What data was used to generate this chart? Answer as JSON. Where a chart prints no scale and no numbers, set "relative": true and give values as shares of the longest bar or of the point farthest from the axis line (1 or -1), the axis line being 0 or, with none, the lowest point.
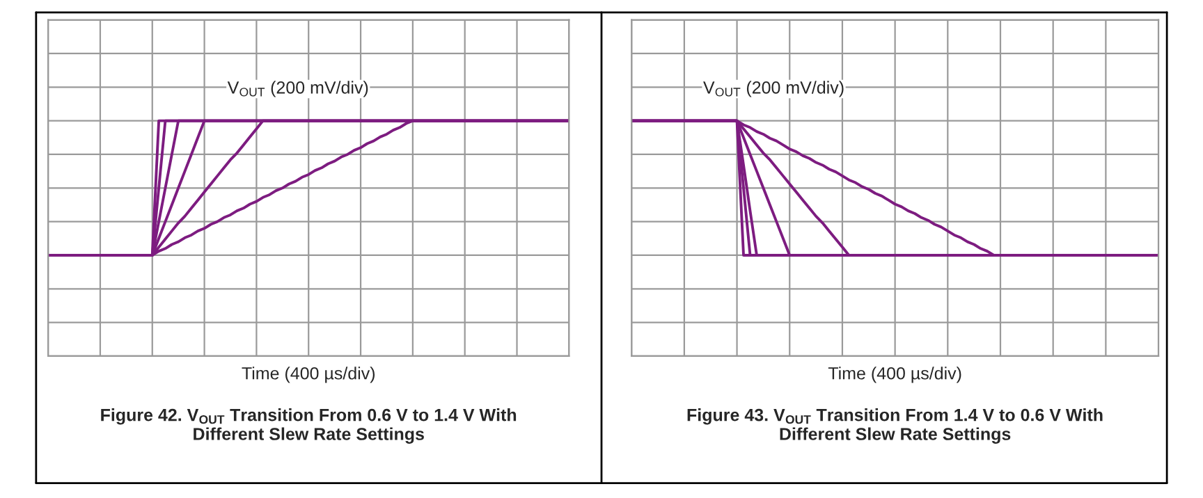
{
  "chart_data": [
    {
      "type": "line",
      "title": "Figure 42. V$_{OUT}$ Transition From 0.6 V to 1.4 V With Different Slew Rate Settings",
      "xlabel": "Time (400 µs/div)",
      "annotations": [
        "V$_{OUT}$ (200 mV/div)"
      ],
      "relative": true,
      "grid": true,
      "marker": "none",
      "line_style": "solid",
      "categories": [
        null,
        null,
        null,
        null,
        null,
        null,
        null,
        null,
        null,
        null,
        null,
        null,
        null,
        null,
        null,
        null,
        null,
        null,
        null,
        null,
        null,
        null,
        null,
        null,
        null,
        null,
        null,
        null,
        null,
        null,
        null,
        null,
        null,
        null,
        null,
        null,
        null,
        null,
        null,
        null,
        null,
        null,
        null,
        null,
        null,
        null,
        null,
        null,
        null,
        null,
        null,
        null,
        null,
        null,
        null,
        null,
        null,
        null,
        null,
        null,
        null,
        null,
        null,
        null,
        null,
        null,
        null,
        null,
        null,
        null,
        null,
        null,
        null,
        null,
        null,
        null,
        null,
        null,
        null,
        null,
        null
      ],
      "series": [
        {
          "color": "#7d1c80",
          "values": [
            0,
            0,
            0,
            0,
            0,
            0,
            0,
            0,
            0,
            0,
            0,
            0,
            0,
            0,
            0,
            0,
            0,
            1,
            1,
            1,
            1,
            1,
            1,
            1,
            1,
            1,
            1,
            1,
            1,
            1,
            1,
            1,
            1,
            1,
            1,
            1,
            1,
            1,
            1,
            1,
            1,
            1,
            1,
            1,
            1,
            1,
            1,
            1,
            1,
            1,
            1,
            1,
            1,
            1,
            1,
            1,
            1,
            1,
            1,
            1,
            1,
            1,
            1,
            1,
            1,
            1,
            1,
            1,
            1,
            1,
            1,
            1,
            1,
            1,
            1,
            1,
            1,
            1,
            1,
            1,
            1
          ]
        },
        {
          "color": "#7d1c80",
          "values": [
            0,
            0,
            0,
            0,
            0,
            0,
            0,
            0,
            0,
            0,
            0,
            0,
            0,
            0,
            0,
            0,
            0,
            0.5,
            1,
            1,
            1,
            1,
            1,
            1,
            1,
            1,
            1,
            1,
            1,
            1,
            1,
            1,
            1,
            1,
            1,
            1,
            1,
            1,
            1,
            1,
            1,
            1,
            1,
            1,
            1,
            1,
            1,
            1,
            1,
            1,
            1,
            1,
            1,
            1,
            1,
            1,
            1,
            1,
            1,
            1,
            1,
            1,
            1,
            1,
            1,
            1,
            1,
            1,
            1,
            1,
            1,
            1,
            1,
            1,
            1,
            1,
            1,
            1,
            1,
            1,
            1
          ]
        },
        {
          "color": "#7d1c80",
          "values": [
            0,
            0,
            0,
            0,
            0,
            0,
            0,
            0,
            0,
            0,
            0,
            0,
            0,
            0,
            0,
            0,
            0,
            0.25,
            0.5,
            0.75,
            1,
            1,
            1,
            1,
            1,
            1,
            1,
            1,
            1,
            1,
            1,
            1,
            1,
            1,
            1,
            1,
            1,
            1,
            1,
            1,
            1,
            1,
            1,
            1,
            1,
            1,
            1,
            1,
            1,
            1,
            1,
            1,
            1,
            1,
            1,
            1,
            1,
            1,
            1,
            1,
            1,
            1,
            1,
            1,
            1,
            1,
            1,
            1,
            1,
            1,
            1,
            1,
            1,
            1,
            1,
            1,
            1,
            1,
            1,
            1,
            1
          ]
        },
        {
          "color": "#7d1c80",
          "values": [
            0,
            0,
            0,
            0,
            0,
            0,
            0,
            0,
            0,
            0,
            0,
            0,
            0,
            0,
            0,
            0,
            0,
            0.125,
            0.25,
            0.375,
            0.5,
            0.625,
            0.75,
            0.875,
            1,
            1,
            1,
            1,
            1,
            1,
            1,
            1,
            1,
            1,
            1,
            1,
            1,
            1,
            1,
            1,
            1,
            1,
            1,
            1,
            1,
            1,
            1,
            1,
            1,
            1,
            1,
            1,
            1,
            1,
            1,
            1,
            1,
            1,
            1,
            1,
            1,
            1,
            1,
            1,
            1,
            1,
            1,
            1,
            1,
            1,
            1,
            1,
            1,
            1,
            1,
            1,
            1,
            1,
            1,
            1,
            1
          ]
        },
        {
          "color": "#7d1c80",
          "values": [
            0,
            0,
            0,
            0,
            0,
            0,
            0,
            0,
            0,
            0,
            0,
            0,
            0,
            0,
            0,
            0,
            0,
            0.06,
            0.12,
            0.18,
            0.24,
            0.29,
            0.35,
            0.41,
            0.47,
            0.53,
            0.59,
            0.65,
            0.71,
            0.76,
            0.82,
            0.88,
            0.94,
            1,
            1,
            1,
            1,
            1,
            1,
            1,
            1,
            1,
            1,
            1,
            1,
            1,
            1,
            1,
            1,
            1,
            1,
            1,
            1,
            1,
            1,
            1,
            1,
            1,
            1,
            1,
            1,
            1,
            1,
            1,
            1,
            1,
            1,
            1,
            1,
            1,
            1,
            1,
            1,
            1,
            1,
            1,
            1,
            1,
            1,
            1,
            1
          ]
        },
        {
          "color": "#7d1c80",
          "values": [
            0,
            0,
            0,
            0,
            0,
            0,
            0,
            0,
            0,
            0,
            0,
            0,
            0,
            0,
            0,
            0,
            0,
            0.03,
            0.05,
            0.08,
            0.1,
            0.13,
            0.15,
            0.18,
            0.2,
            0.23,
            0.25,
            0.28,
            0.3,
            0.33,
            0.35,
            0.38,
            0.4,
            0.43,
            0.45,
            0.48,
            0.5,
            0.53,
            0.55,
            0.58,
            0.6,
            0.63,
            0.65,
            0.68,
            0.7,
            0.73,
            0.75,
            0.78,
            0.8,
            0.83,
            0.85,
            0.88,
            0.9,
            0.93,
            0.95,
            0.98,
            1,
            1,
            1,
            1,
            1,
            1,
            1,
            1,
            1,
            1,
            1,
            1,
            1,
            1,
            1,
            1,
            1,
            1,
            1,
            1,
            1,
            1,
            1,
            1,
            1
          ]
        }
      ]
    },
    {
      "type": "line",
      "title": "Figure 43. V$_{OUT}$ Transition From 1.4 V to 0.6 V With Different Slew Rate Settings",
      "xlabel": "Time (400 µs/div)",
      "annotations": [
        "V$_{OUT}$ (200 mV/div)"
      ],
      "relative": true,
      "grid": true,
      "marker": "none",
      "line_style": "solid",
      "categories": [
        null,
        null,
        null,
        null,
        null,
        null,
        null,
        null,
        null,
        null,
        null,
        null,
        null,
        null,
        null,
        null,
        null,
        null,
        null,
        null,
        null,
        null,
        null,
        null,
        null,
        null,
        null,
        null,
        null,
        null,
        null,
        null,
        null,
        null,
        null,
        null,
        null,
        null,
        null,
        null,
        null,
        null,
        null,
        null,
        null,
        null,
        null,
        null,
        null,
        null,
        null,
        null,
        null,
        null,
        null,
        null,
        null,
        null,
        null,
        null,
        null,
        null,
        null,
        null,
        null,
        null,
        null,
        null,
        null,
        null,
        null,
        null,
        null,
        null,
        null,
        null,
        null,
        null,
        null,
        null,
        null
      ],
      "series": [
        {
          "color": "#7d1c80",
          "values": [
            1,
            1,
            1,
            1,
            1,
            1,
            1,
            1,
            1,
            1,
            1,
            1,
            1,
            1,
            1,
            1,
            1,
            0,
            0,
            0,
            0,
            0,
            0,
            0,
            0,
            0,
            0,
            0,
            0,
            0,
            0,
            0,
            0,
            0,
            0,
            0,
            0,
            0,
            0,
            0,
            0,
            0,
            0,
            0,
            0,
            0,
            0,
            0,
            0,
            0,
            0,
            0,
            0,
            0,
            0,
            0,
            0,
            0,
            0,
            0,
            0,
            0,
            0,
            0,
            0,
            0,
            0,
            0,
            0,
            0,
            0,
            0,
            0,
            0,
            0,
            0,
            0,
            0,
            0,
            0,
            0
          ]
        },
        {
          "color": "#7d1c80",
          "values": [
            1,
            1,
            1,
            1,
            1,
            1,
            1,
            1,
            1,
            1,
            1,
            1,
            1,
            1,
            1,
            1,
            1,
            0.5,
            0,
            0,
            0,
            0,
            0,
            0,
            0,
            0,
            0,
            0,
            0,
            0,
            0,
            0,
            0,
            0,
            0,
            0,
            0,
            0,
            0,
            0,
            0,
            0,
            0,
            0,
            0,
            0,
            0,
            0,
            0,
            0,
            0,
            0,
            0,
            0,
            0,
            0,
            0,
            0,
            0,
            0,
            0,
            0,
            0,
            0,
            0,
            0,
            0,
            0,
            0,
            0,
            0,
            0,
            0,
            0,
            0,
            0,
            0,
            0,
            0,
            0,
            0
          ]
        },
        {
          "color": "#7d1c80",
          "values": [
            1,
            1,
            1,
            1,
            1,
            1,
            1,
            1,
            1,
            1,
            1,
            1,
            1,
            1,
            1,
            1,
            1,
            0.67,
            0.33,
            0,
            0,
            0,
            0,
            0,
            0,
            0,
            0,
            0,
            0,
            0,
            0,
            0,
            0,
            0,
            0,
            0,
            0,
            0,
            0,
            0,
            0,
            0,
            0,
            0,
            0,
            0,
            0,
            0,
            0,
            0,
            0,
            0,
            0,
            0,
            0,
            0,
            0,
            0,
            0,
            0,
            0,
            0,
            0,
            0,
            0,
            0,
            0,
            0,
            0,
            0,
            0,
            0,
            0,
            0,
            0,
            0,
            0,
            0,
            0,
            0,
            0
          ]
        },
        {
          "color": "#7d1c80",
          "values": [
            1,
            1,
            1,
            1,
            1,
            1,
            1,
            1,
            1,
            1,
            1,
            1,
            1,
            1,
            1,
            1,
            1,
            0.875,
            0.75,
            0.625,
            0.5,
            0.375,
            0.25,
            0.125,
            0,
            0,
            0,
            0,
            0,
            0,
            0,
            0,
            0,
            0,
            0,
            0,
            0,
            0,
            0,
            0,
            0,
            0,
            0,
            0,
            0,
            0,
            0,
            0,
            0,
            0,
            0,
            0,
            0,
            0,
            0,
            0,
            0,
            0,
            0,
            0,
            0,
            0,
            0,
            0,
            0,
            0,
            0,
            0,
            0,
            0,
            0,
            0,
            0,
            0,
            0,
            0,
            0,
            0,
            0,
            0,
            0
          ]
        },
        {
          "color": "#7d1c80",
          "values": [
            1,
            1,
            1,
            1,
            1,
            1,
            1,
            1,
            1,
            1,
            1,
            1,
            1,
            1,
            1,
            1,
            1,
            0.94,
            0.88,
            0.82,
            0.76,
            0.71,
            0.65,
            0.59,
            0.53,
            0.47,
            0.41,
            0.35,
            0.29,
            0.24,
            0.18,
            0.12,
            0.06,
            0,
            0,
            0,
            0,
            0,
            0,
            0,
            0,
            0,
            0,
            0,
            0,
            0,
            0,
            0,
            0,
            0,
            0,
            0,
            0,
            0,
            0,
            0,
            0,
            0,
            0,
            0,
            0,
            0,
            0,
            0,
            0,
            0,
            0,
            0,
            0,
            0,
            0,
            0,
            0,
            0,
            0,
            0,
            0,
            0,
            0,
            0,
            0
          ]
        },
        {
          "color": "#7d1c80",
          "values": [
            1,
            1,
            1,
            1,
            1,
            1,
            1,
            1,
            1,
            1,
            1,
            1,
            1,
            1,
            1,
            1,
            1,
            0.97,
            0.95,
            0.92,
            0.9,
            0.87,
            0.85,
            0.82,
            0.79,
            0.77,
            0.74,
            0.72,
            0.69,
            0.67,
            0.64,
            0.62,
            0.59,
            0.56,
            0.54,
            0.51,
            0.49,
            0.46,
            0.44,
            0.41,
            0.38,
            0.36,
            0.33,
            0.31,
            0.28,
            0.26,
            0.23,
            0.21,
            0.18,
            0.15,
            0.13,
            0.1,
            0.08,
            0.05,
            0.03,
            0,
            0,
            0,
            0,
            0,
            0,
            0,
            0,
            0,
            0,
            0,
            0,
            0,
            0,
            0,
            0,
            0,
            0,
            0,
            0,
            0,
            0,
            0,
            0,
            0,
            0
          ]
        }
      ]
    }
  ]
}
